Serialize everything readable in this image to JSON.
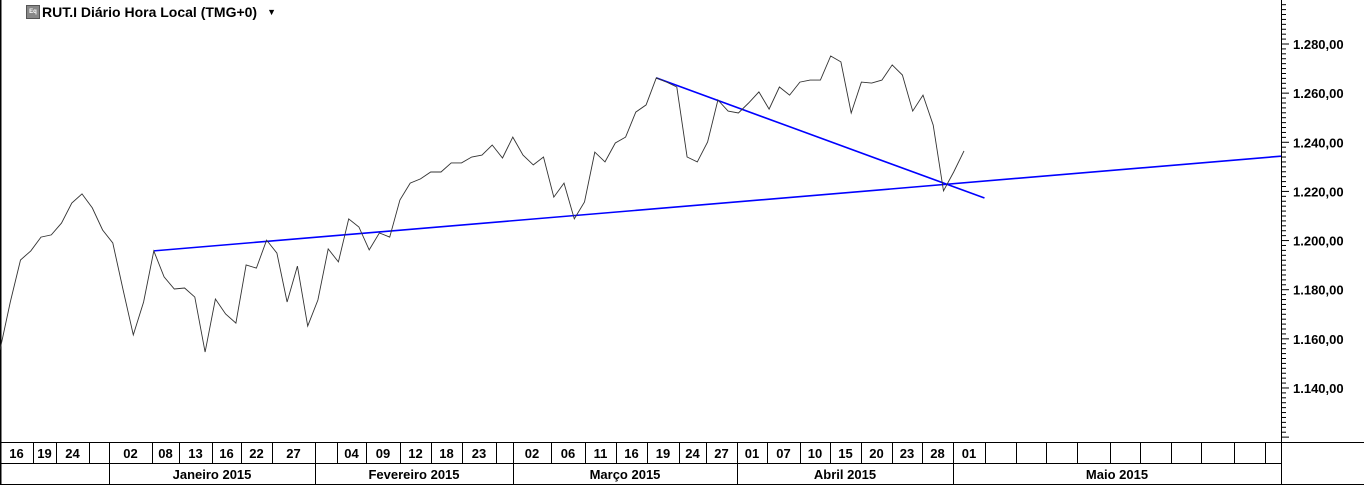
{
  "header": {
    "icon": "equity-icon",
    "title": "RUT.I Diário Hora Local (TMG+0)",
    "dropdown_icon": "caret-down-icon"
  },
  "colors": {
    "price_line": "#333333",
    "trendline": "#0000ff",
    "grid": "#000000"
  },
  "chart_data": {
    "type": "line",
    "title": "RUT.I Diário Hora Local (TMG+0)",
    "ylim": [
      1120,
      1298
    ],
    "y_ticks": [
      {
        "value": 1280,
        "label": "1.280,00"
      },
      {
        "value": 1260,
        "label": "1.260,00"
      },
      {
        "value": 1240,
        "label": "1.240,00"
      },
      {
        "value": 1220,
        "label": "1.220,00"
      },
      {
        "value": 1200,
        "label": "1.200,00"
      },
      {
        "value": 1180,
        "label": "1.180,00"
      },
      {
        "value": 1160,
        "label": "1.160,00"
      },
      {
        "value": 1140,
        "label": "1.140,00"
      }
    ],
    "x": [
      "2014-12-15",
      "2014-12-16",
      "2014-12-17",
      "2014-12-18",
      "2014-12-19",
      "2014-12-22",
      "2014-12-23",
      "2014-12-24",
      "2014-12-26",
      "2014-12-29",
      "2014-12-30",
      "2014-12-31",
      "2015-01-02",
      "2015-01-05",
      "2015-01-06",
      "2015-01-07",
      "2015-01-08",
      "2015-01-09",
      "2015-01-12",
      "2015-01-13",
      "2015-01-14",
      "2015-01-15",
      "2015-01-16",
      "2015-01-20",
      "2015-01-21",
      "2015-01-22",
      "2015-01-23",
      "2015-01-26",
      "2015-01-27",
      "2015-01-28",
      "2015-01-29",
      "2015-01-30",
      "2015-02-02",
      "2015-02-03",
      "2015-02-04",
      "2015-02-05",
      "2015-02-06",
      "2015-02-09",
      "2015-02-10",
      "2015-02-11",
      "2015-02-12",
      "2015-02-13",
      "2015-02-17",
      "2015-02-18",
      "2015-02-19",
      "2015-02-20",
      "2015-02-23",
      "2015-02-24",
      "2015-02-25",
      "2015-02-26",
      "2015-02-27",
      "2015-03-02",
      "2015-03-03",
      "2015-03-04",
      "2015-03-05",
      "2015-03-06",
      "2015-03-09",
      "2015-03-10",
      "2015-03-11",
      "2015-03-12",
      "2015-03-13",
      "2015-03-16",
      "2015-03-17",
      "2015-03-18",
      "2015-03-19",
      "2015-03-20",
      "2015-03-23",
      "2015-03-24",
      "2015-03-25",
      "2015-03-26",
      "2015-03-27",
      "2015-03-30",
      "2015-03-31",
      "2015-04-01",
      "2015-04-02",
      "2015-04-06",
      "2015-04-07",
      "2015-04-08",
      "2015-04-09",
      "2015-04-10",
      "2015-04-13",
      "2015-04-14",
      "2015-04-15",
      "2015-04-16",
      "2015-04-17",
      "2015-04-20",
      "2015-04-21",
      "2015-04-22",
      "2015-04-23",
      "2015-04-24",
      "2015-04-27",
      "2015-04-28",
      "2015-04-29",
      "2015-04-30",
      "2015-05-01"
    ],
    "values": [
      1155.5,
      1175.0,
      1192.1,
      1195.8,
      1201.4,
      1202.3,
      1207.1,
      1215.3,
      1219.0,
      1213.3,
      1204.3,
      1199.0,
      1179.9,
      1161.6,
      1175.0,
      1195.8,
      1185.2,
      1180.3,
      1180.7,
      1177.0,
      1154.6,
      1176.2,
      1170.1,
      1166.4,
      1190.1,
      1188.8,
      1200.2,
      1194.9,
      1175.0,
      1189.6,
      1165.2,
      1175.8,
      1196.6,
      1191.3,
      1208.8,
      1205.5,
      1196.2,
      1203.1,
      1201.4,
      1216.5,
      1223.4,
      1225.1,
      1227.9,
      1227.9,
      1231.6,
      1231.6,
      1234.0,
      1234.8,
      1238.9,
      1233.6,
      1242.1,
      1234.8,
      1230.8,
      1234.0,
      1217.7,
      1223.4,
      1208.8,
      1215.7,
      1236.0,
      1232.0,
      1239.7,
      1242.1,
      1252.3,
      1255.2,
      1266.2,
      1264.5,
      1262.5,
      1234.0,
      1232.0,
      1240.1,
      1257.2,
      1252.7,
      1251.9,
      1256.0,
      1260.5,
      1253.5,
      1262.5,
      1259.2,
      1264.5,
      1265.3,
      1265.3,
      1275.1,
      1272.7,
      1251.9,
      1264.5,
      1264.1,
      1265.3,
      1271.5,
      1267.4,
      1252.7,
      1259.2,
      1247.0,
      1220.2,
      1227.9,
      1236.5
    ],
    "trendlines": [
      {
        "from": {
          "date": "2015-01-07",
          "value": 1195.8
        },
        "to": {
          "date": "2015-04-29",
          "value": 1222.8
        },
        "extend_right": true
      },
      {
        "from": {
          "date": "2015-03-19",
          "value": 1266.2
        },
        "to": {
          "date": "2015-05-05",
          "value": 1217.3
        },
        "extend_right": false
      }
    ],
    "x_axis": {
      "day_labels": [
        "16",
        "19",
        "24",
        "",
        "02",
        "08",
        "13",
        "16",
        "22",
        "27",
        "",
        "04",
        "09",
        "12",
        "18",
        "23",
        "",
        "02",
        "06",
        "11",
        "16",
        "19",
        "24",
        "27",
        "01",
        "07",
        "10",
        "15",
        "20",
        "23",
        "28",
        "01",
        "",
        "",
        "",
        "",
        "",
        "",
        "",
        "",
        "",
        ""
      ],
      "month_labels": [
        "",
        "Janeiro 2015",
        "Fevereiro 2015",
        "Março 2015",
        "Abril 2015",
        "Maio 2015"
      ]
    }
  }
}
